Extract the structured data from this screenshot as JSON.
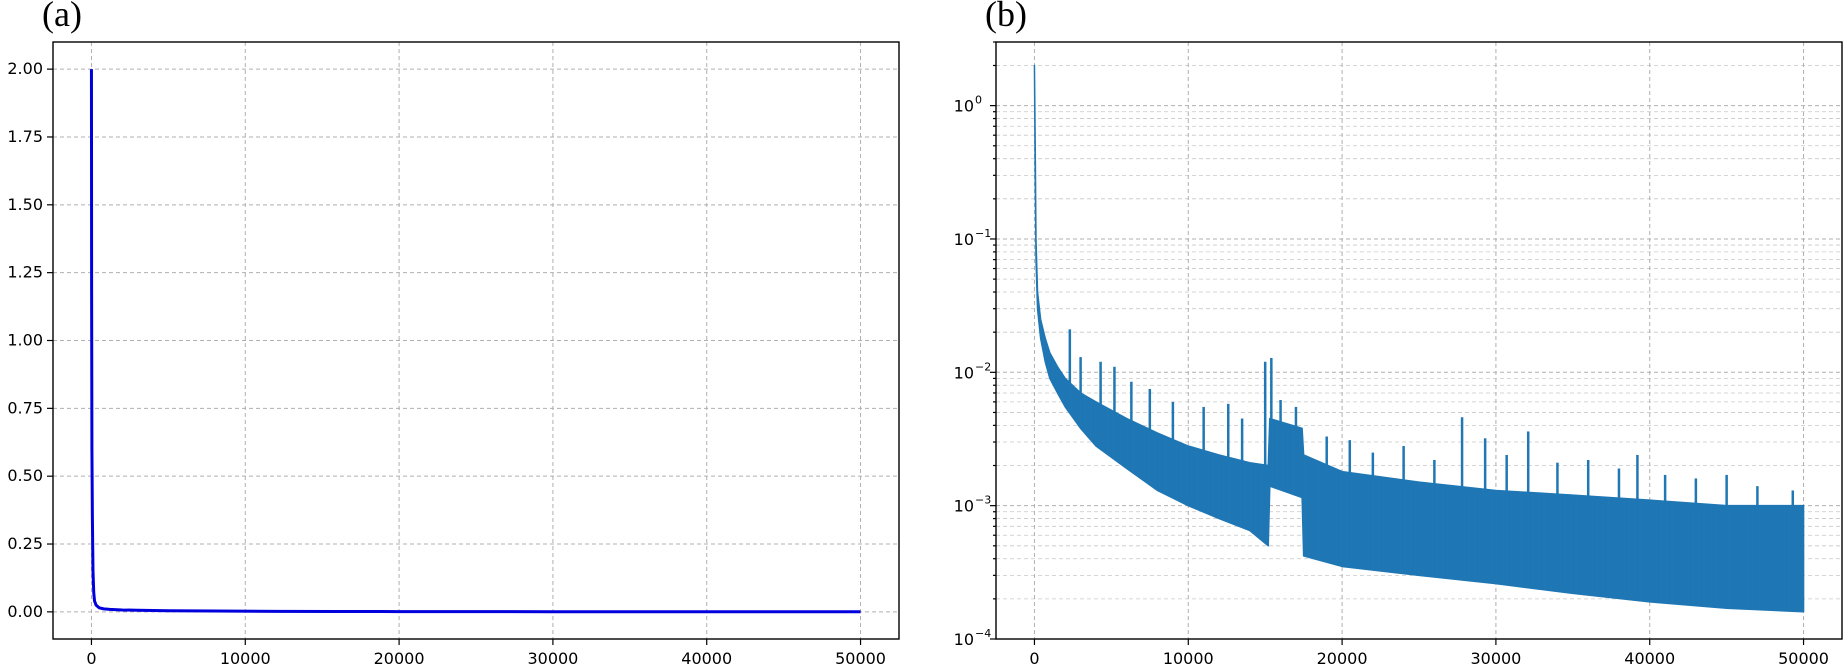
{
  "chart_data": [
    {
      "panel_label": "(a)",
      "type": "line",
      "title": "",
      "xlabel": "",
      "ylabel": "",
      "xlim": [
        -2500,
        52500
      ],
      "ylim": [
        -0.1,
        2.1
      ],
      "xticks": [
        0,
        10000,
        20000,
        30000,
        40000,
        50000
      ],
      "xtick_labels": [
        "0",
        "10000",
        "20000",
        "30000",
        "40000",
        "50000"
      ],
      "yticks": [
        0,
        0.25,
        0.5,
        0.75,
        1.0,
        1.25,
        1.5,
        1.75,
        2.0
      ],
      "ytick_labels": [
        "0.00",
        "0.25",
        "0.50",
        "0.75",
        "1.00",
        "1.25",
        "1.50",
        "1.75",
        "2.00"
      ],
      "y_scale": "linear",
      "grid": true,
      "series": [
        {
          "color": "#0000dd",
          "x": [
            0,
            10,
            30,
            60,
            100,
            150,
            200,
            300,
            500,
            800,
            1200,
            2000,
            3000,
            5000,
            8000,
            12000,
            16000,
            20000,
            25000,
            30000,
            35000,
            40000,
            45000,
            50000
          ],
          "y": [
            2.0,
            1.2,
            0.6,
            0.35,
            0.15,
            0.07,
            0.04,
            0.025,
            0.015,
            0.011,
            0.009,
            0.007,
            0.006,
            0.004,
            0.003,
            0.002,
            0.0015,
            0.001,
            0.0008,
            0.0006,
            0.0005,
            0.0004,
            0.0003,
            0.0003
          ]
        }
      ]
    },
    {
      "panel_label": "(b)",
      "type": "line",
      "title": "",
      "xlabel": "",
      "ylabel": "",
      "xlim": [
        -2500,
        52500
      ],
      "ylim": [
        0.0001,
        3.0
      ],
      "y_scale": "log",
      "xticks": [
        0,
        10000,
        20000,
        30000,
        40000,
        50000
      ],
      "xtick_labels": [
        "0",
        "10000",
        "20000",
        "30000",
        "40000",
        "50000"
      ],
      "yticks": [
        0.0001,
        0.001,
        0.01,
        0.1,
        1
      ],
      "ytick_labels": [
        {
          "base": "10",
          "exp": "−4"
        },
        {
          "base": "10",
          "exp": "−3"
        },
        {
          "base": "10",
          "exp": "−2"
        },
        {
          "base": "10",
          "exp": "−1"
        },
        {
          "base": "10",
          "exp": "0"
        }
      ],
      "grid": true,
      "series": [
        {
          "color": "#1f77b4",
          "x": [
            0,
            50,
            100,
            200,
            400,
            700,
            1000,
            1500,
            2000,
            3000,
            4000,
            6000,
            8000,
            10000,
            12000,
            14000,
            15200,
            15300,
            17400,
            17500,
            20000,
            25000,
            30000,
            35000,
            40000,
            45000,
            50000
          ],
          "y_upper": [
            2.0,
            0.5,
            0.1,
            0.04,
            0.025,
            0.018,
            0.014,
            0.011,
            0.009,
            0.007,
            0.006,
            0.0045,
            0.0035,
            0.0028,
            0.0024,
            0.0021,
            0.002,
            0.0045,
            0.0038,
            0.0024,
            0.0018,
            0.0015,
            0.0013,
            0.0012,
            0.0011,
            0.001,
            0.001
          ],
          "y_lower": [
            2.0,
            0.3,
            0.07,
            0.03,
            0.018,
            0.012,
            0.009,
            0.007,
            0.0055,
            0.0038,
            0.0028,
            0.0019,
            0.0013,
            0.001,
            0.0008,
            0.00065,
            0.0005,
            0.0014,
            0.00115,
            0.00042,
            0.00035,
            0.0003,
            0.00026,
            0.00022,
            0.00019,
            0.00017,
            0.00016
          ],
          "spikes": [
            {
              "x": 2300,
              "y": 0.021
            },
            {
              "x": 3000,
              "y": 0.013
            },
            {
              "x": 4300,
              "y": 0.012
            },
            {
              "x": 5200,
              "y": 0.011
            },
            {
              "x": 6300,
              "y": 0.0085
            },
            {
              "x": 7500,
              "y": 0.0075
            },
            {
              "x": 9000,
              "y": 0.006
            },
            {
              "x": 11000,
              "y": 0.0055
            },
            {
              "x": 12600,
              "y": 0.0058
            },
            {
              "x": 13500,
              "y": 0.0045
            },
            {
              "x": 15000,
              "y": 0.012
            },
            {
              "x": 15400,
              "y": 0.0128
            },
            {
              "x": 16000,
              "y": 0.0062
            },
            {
              "x": 17000,
              "y": 0.0055
            },
            {
              "x": 19000,
              "y": 0.0033
            },
            {
              "x": 20500,
              "y": 0.0031
            },
            {
              "x": 22000,
              "y": 0.0025
            },
            {
              "x": 24000,
              "y": 0.0028
            },
            {
              "x": 26000,
              "y": 0.0022
            },
            {
              "x": 27800,
              "y": 0.0046
            },
            {
              "x": 29300,
              "y": 0.0032
            },
            {
              "x": 30700,
              "y": 0.0024
            },
            {
              "x": 32100,
              "y": 0.0036
            },
            {
              "x": 34000,
              "y": 0.0021
            },
            {
              "x": 36000,
              "y": 0.0022
            },
            {
              "x": 38000,
              "y": 0.0019
            },
            {
              "x": 39200,
              "y": 0.0024
            },
            {
              "x": 41000,
              "y": 0.0017
            },
            {
              "x": 43000,
              "y": 0.0016
            },
            {
              "x": 45000,
              "y": 0.0017
            },
            {
              "x": 47000,
              "y": 0.0014
            },
            {
              "x": 49300,
              "y": 0.0013
            }
          ]
        }
      ]
    }
  ]
}
